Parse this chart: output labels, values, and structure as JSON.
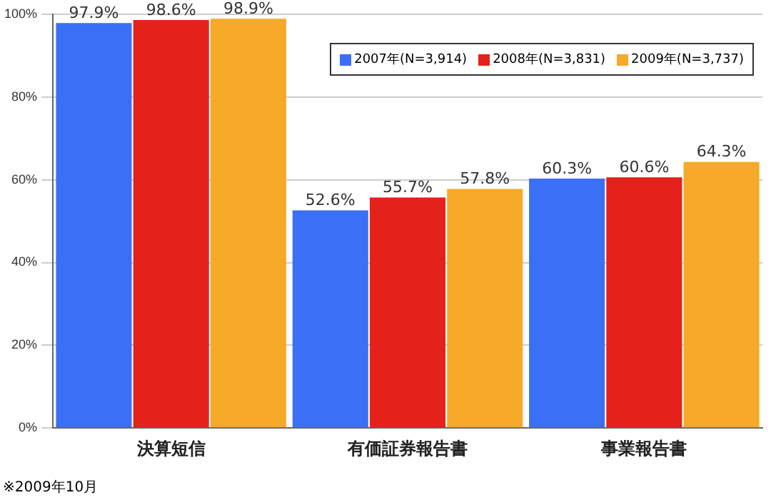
{
  "chart_data": {
    "type": "bar",
    "categories": [
      "決算短信",
      "有価証券報告書",
      "事業報告書"
    ],
    "series": [
      {
        "name": "2007年(N=3,914)",
        "color": "#3b6ff5",
        "values": [
          97.9,
          52.6,
          60.3
        ],
        "value_labels": [
          "97.9%",
          "52.6%",
          "60.3%"
        ]
      },
      {
        "name": "2008年(N=3,831)",
        "color": "#e5211b",
        "values": [
          98.6,
          55.7,
          60.6
        ],
        "value_labels": [
          "98.6%",
          "55.7%",
          "60.6%"
        ]
      },
      {
        "name": "2009年(N=3,737)",
        "color": "#f7a929",
        "values": [
          98.9,
          57.8,
          64.3
        ],
        "value_labels": [
          "98.9%",
          "57.8%",
          "64.3%"
        ]
      }
    ],
    "ylim": [
      0,
      100
    ],
    "yticks": [
      {
        "value": 0,
        "label": "0%"
      },
      {
        "value": 20,
        "label": "20%"
      },
      {
        "value": 40,
        "label": "40%"
      },
      {
        "value": 60,
        "label": "60%"
      },
      {
        "value": 80,
        "label": "80%"
      },
      {
        "value": 100,
        "label": "100%"
      }
    ],
    "grid": "y",
    "legend": "top right",
    "annotations": [
      "※2009年10月"
    ]
  }
}
